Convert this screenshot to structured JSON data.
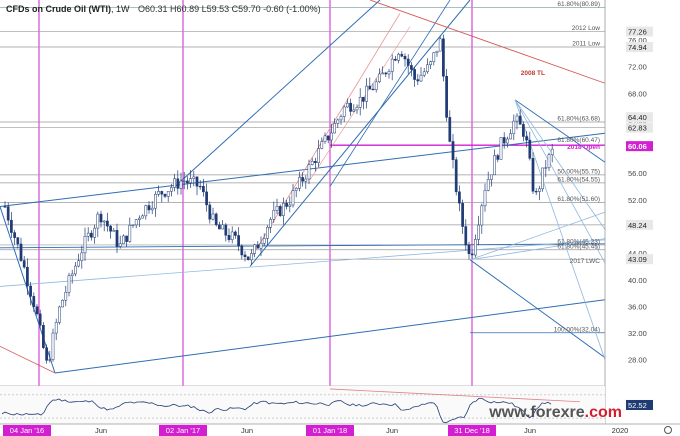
{
  "header": {
    "title": "CFDs on Crude Oil (WTI)",
    "interval": "1W",
    "ohlc": "O60.31  H60.89  L59.53  C59.70  -0.60 (-1.00%)"
  },
  "watermark": {
    "brand": "www.forexre",
    "dot_com": ".com"
  },
  "colors": {
    "candle_up": "#1f3b73",
    "candle_down": "#1f3b73",
    "channel": "#2e6db4",
    "light_channel": "#8fb8e0",
    "magenta": "#d21fd2",
    "red_line": "#d65a5a",
    "level": "#555555",
    "rsi": "#1f3b73"
  },
  "chart_data": {
    "type": "candlestick",
    "x_tick_labels": [
      "04 Jan '16",
      "Jun",
      "02 Jan '17",
      "Jun",
      "01 Jan '18",
      "Jun",
      "31 Dec '18",
      "Jun",
      "2020"
    ],
    "highlighted_ticks": [
      "04 Jan '16",
      "02 Jan '17",
      "01 Jan '18",
      "31 Dec '18"
    ],
    "ylim": [
      24.5,
      82
    ],
    "y_tick_labels": [
      "28.00",
      "32.00",
      "36.00",
      "40.00",
      "44.00",
      "48.00",
      "52.00",
      "56.00",
      "60.00",
      "64.00",
      "68.00",
      "72.00",
      "76.00"
    ],
    "axis_levels": [
      {
        "label": "77.26",
        "value": 77.26
      },
      {
        "label": "74.94",
        "value": 74.94
      },
      {
        "label": "64.40",
        "value": 64.4
      },
      {
        "label": "62.83",
        "value": 62.83
      },
      {
        "label": "48.24",
        "value": 48.24
      },
      {
        "label": "43.09",
        "value": 43.09
      }
    ],
    "current_price": {
      "label": "60.06",
      "value": 60.06
    },
    "level_annotations": [
      {
        "text": "61.80%(80.89)",
        "value": 80.89
      },
      {
        "text": "2012 Low",
        "value": 77.26
      },
      {
        "text": "2011 Low",
        "value": 74.94
      },
      {
        "text": "2008 TL",
        "value": 70.5
      },
      {
        "text": "61.80%(63.68)",
        "value": 63.68
      },
      {
        "text": "61.80%(60.47)",
        "value": 60.47
      },
      {
        "text": "2018 Open",
        "value": 59.4
      },
      {
        "text": "50.00%(55.75)",
        "value": 55.75
      },
      {
        "text": "61.80%(54.55)",
        "value": 54.55
      },
      {
        "text": "61.80%(51.60)",
        "value": 51.6
      },
      {
        "text": "61.80%(45.23)",
        "value": 45.23
      },
      {
        "text": "61.80%(45.45)",
        "value": 44.5
      },
      {
        "text": "2017 LWC",
        "value": 42.3
      },
      {
        "text": "100.00%(32.04)",
        "value": 32.04
      }
    ],
    "rsi": {
      "last_label": "52.52",
      "last": 52.52
    }
  }
}
